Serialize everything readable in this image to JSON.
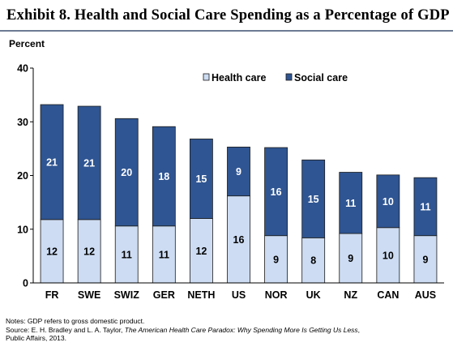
{
  "header": {
    "title": "Exhibit 8. Health and Social Care Spending as a Percentage of GDP"
  },
  "chart_data": {
    "type": "bar",
    "stacked": true,
    "title": "Exhibit 8. Health and Social Care Spending as a Percentage of GDP",
    "ylabel": "Percent",
    "xlabel": "",
    "ylim": [
      0,
      40
    ],
    "yticks": [
      0,
      10,
      20,
      30,
      40
    ],
    "grid": false,
    "legend_position": "top-right",
    "categories": [
      "FR",
      "SWE",
      "SWIZ",
      "GER",
      "NETH",
      "US",
      "NOR",
      "UK",
      "NZ",
      "CAN",
      "AUS"
    ],
    "series": [
      {
        "name": "Health care",
        "color": "#cddcf2",
        "values": [
          12,
          12,
          11,
          11,
          12,
          16,
          9,
          8,
          9,
          10,
          9
        ],
        "heights": [
          11.8,
          11.8,
          10.6,
          10.6,
          12.0,
          16.2,
          8.8,
          8.4,
          9.2,
          10.3,
          8.8
        ]
      },
      {
        "name": "Social care",
        "color": "#2f5592",
        "values": [
          21,
          21,
          20,
          18,
          15,
          9,
          16,
          15,
          11,
          10,
          11
        ],
        "heights": [
          21.4,
          21.1,
          20.0,
          18.5,
          14.8,
          9.1,
          16.4,
          14.5,
          11.4,
          9.8,
          10.8
        ]
      }
    ]
  },
  "notes": {
    "line1": "Notes: GDP refers to gross domestic product.",
    "line2_prefix": "Source: E. H. Bradley and L. A. Taylor, ",
    "line2_italic": "The American Health Care Paradox: Why Spending More Is Getting Us Less",
    "line2_suffix": ",",
    "line3": "Public Affairs, 2013."
  }
}
